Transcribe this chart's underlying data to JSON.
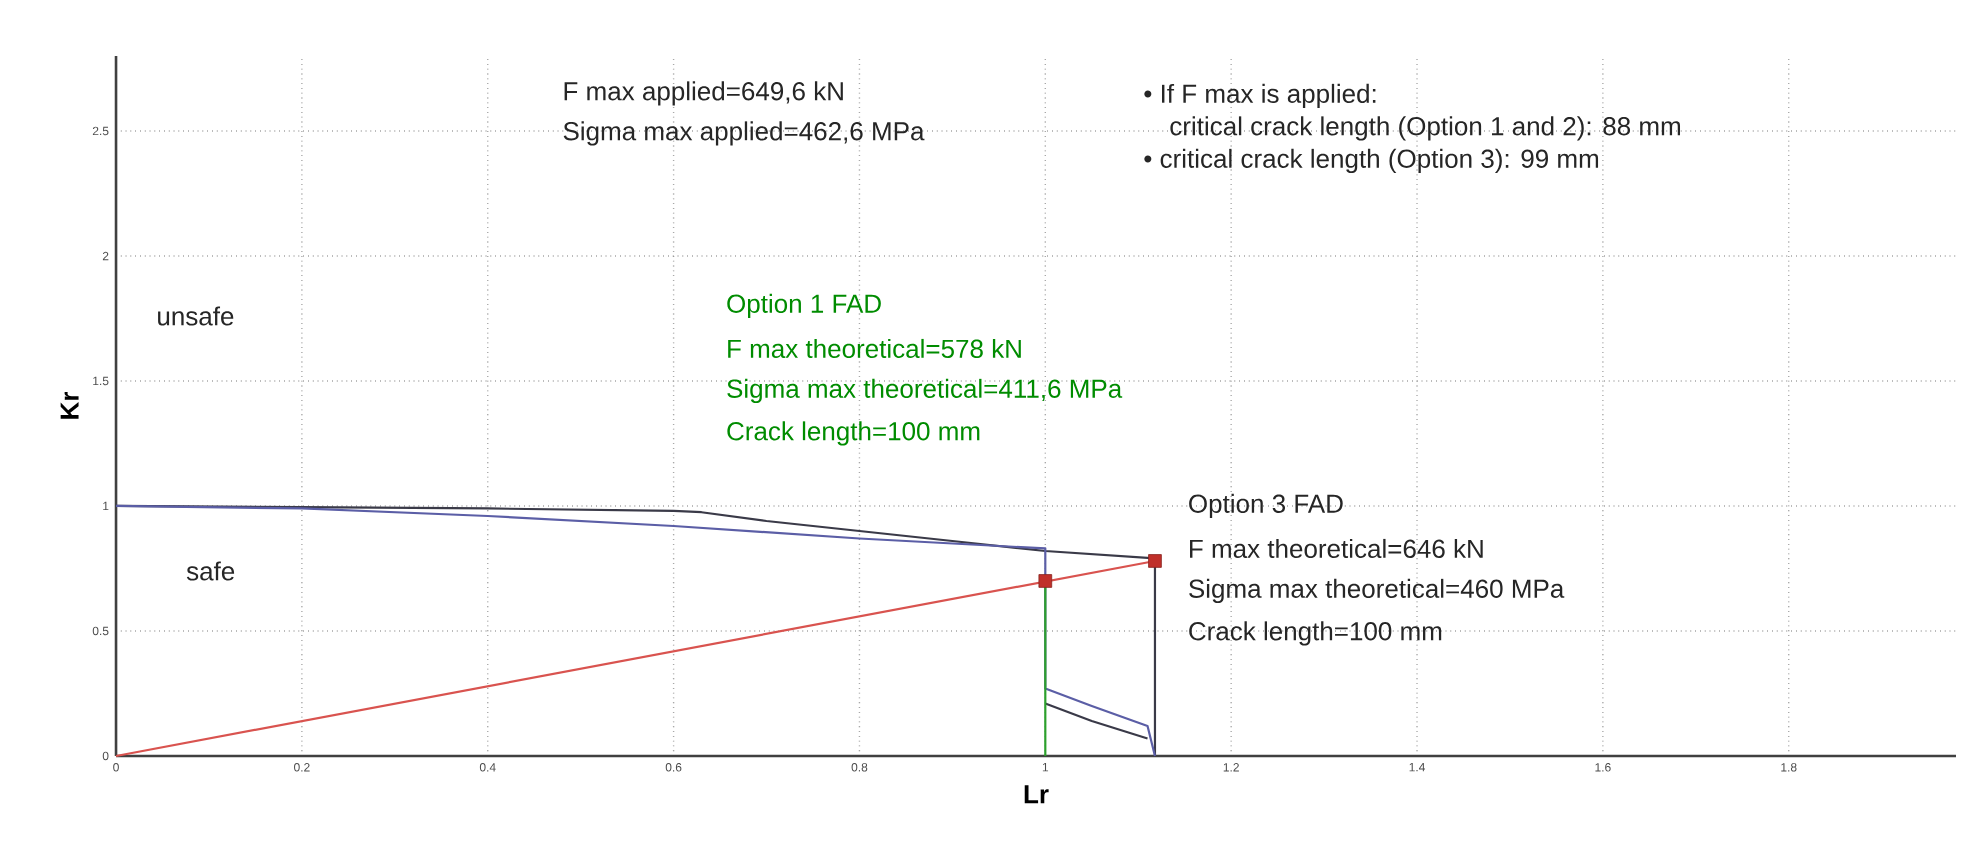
{
  "chart_data": {
    "type": "line",
    "xlabel": "Lr",
    "ylabel": "Kr",
    "xlim": [
      0,
      1.98
    ],
    "ylim": [
      0,
      2.8
    ],
    "xticks": [
      0,
      0.2,
      0.4,
      0.6,
      0.8,
      1,
      1.2,
      1.4,
      1.6,
      1.8
    ],
    "yticks": [
      0,
      0.5,
      1,
      1.5,
      2,
      2.5
    ],
    "grid": true,
    "marker": "none",
    "series": [
      {
        "color": "#3a3a48",
        "x": [
          0,
          0.2,
          0.4,
          0.6,
          0.63,
          0.7,
          0.8,
          0.9,
          1.0,
          1.118,
          1.118
        ],
        "values": [
          1,
          0.995,
          0.99,
          0.98,
          0.975,
          0.94,
          0.9,
          0.86,
          0.82,
          0.79,
          0
        ]
      },
      {
        "color": "#5b5ea6",
        "x": [
          0,
          0.2,
          0.4,
          0.6,
          0.8,
          1.0,
          1.0,
          1.05,
          1.11,
          1.118
        ],
        "values": [
          1,
          0.99,
          0.96,
          0.92,
          0.87,
          0.83,
          0.27,
          0.2,
          0.12,
          0
        ]
      },
      {
        "color": "#3a3a48",
        "x": [
          1.0,
          1.05,
          1.11
        ],
        "values": [
          0.21,
          0.14,
          0.07
        ]
      },
      {
        "color": "#2ca02c",
        "x": [
          1,
          1
        ],
        "values": [
          0,
          0.7
        ]
      },
      {
        "color": "#d9534f",
        "x": [
          0,
          1.118
        ],
        "values": [
          0,
          0.78
        ]
      },
      {
        "type": "scatter",
        "marker": "square",
        "color": "#c0302a",
        "x": [
          1,
          1.118
        ],
        "values": [
          0.7,
          0.78
        ]
      }
    ],
    "annotations": [
      "F max applied=649,6 kN",
      "Sigma max applied=462,6 MPa",
      "• If F max is applied:",
      "critical crack length (Option 1 and 2): 88 mm",
      "• critical crack length (Option 3): 99 mm",
      "unsafe",
      "safe",
      "Option 1 FAD",
      "F max theoretical=578 kN",
      "Sigma max theoretical=411,6 MPa",
      "Crack length=100 mm",
      "Option 3 FAD",
      "F max theoretical=646 kN",
      "Sigma max theoretical=460 MPa",
      "Crack length=100 mm"
    ]
  }
}
